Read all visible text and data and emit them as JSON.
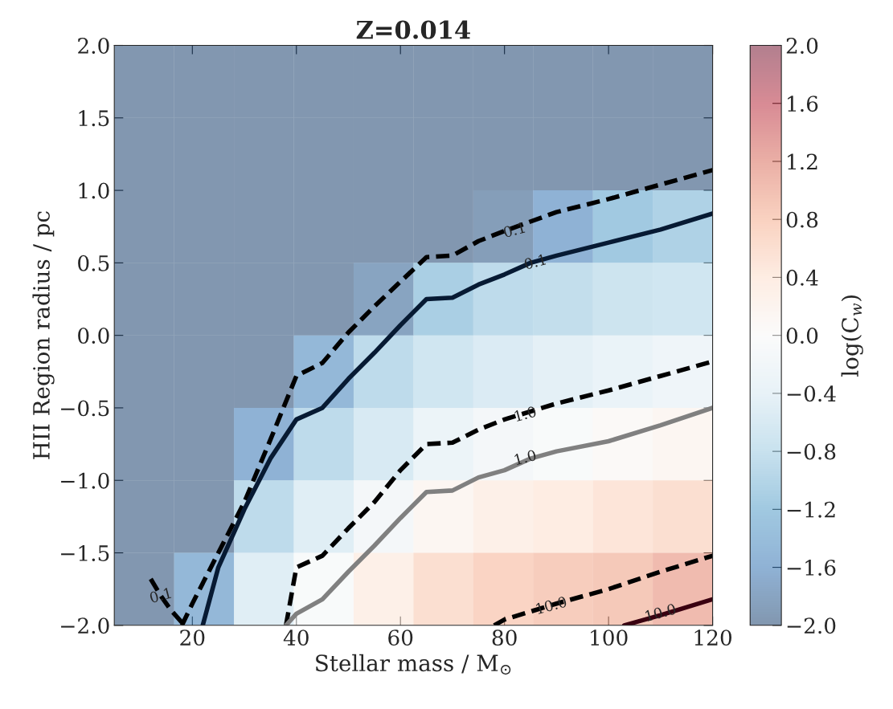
{
  "chart_data": {
    "type": "heatmap",
    "title": "Z=0.014",
    "xlabel": "Stellar mass / M$_{⊙}$",
    "ylabel": "HII Region radius / pc",
    "clabel": "log(C$_{w}$)",
    "x": [
      10.75,
      22.25,
      33.75,
      45.25,
      56.75,
      68.25,
      79.75,
      91.25,
      102.75,
      114.25
    ],
    "y": [
      1.75,
      1.25,
      0.75,
      0.25,
      -0.25,
      -0.75,
      -1.25,
      -1.75
    ],
    "cells": [
      [
        -2,
        -2,
        -2,
        -2,
        -2,
        -2,
        -2,
        -2,
        -2,
        -2
      ],
      [
        -2,
        -2,
        -2,
        -2,
        -2,
        -2,
        -2,
        -2,
        -2,
        -2
      ],
      [
        -2,
        -2,
        -2,
        -2,
        -2,
        -2,
        -1.9,
        -1.6,
        -1.2,
        -1.05
      ],
      [
        -2,
        -2,
        -2,
        -2,
        -1.8,
        -1.1,
        -0.9,
        -0.85,
        -0.75,
        -0.7
      ],
      [
        -2,
        -2,
        -2,
        -1.5,
        -0.9,
        -0.7,
        -0.55,
        -0.45,
        -0.35,
        -0.25
      ],
      [
        -2,
        -2,
        -1.6,
        -0.9,
        -0.6,
        -0.3,
        -0.15,
        -0.05,
        0.05,
        0.15
      ],
      [
        -2,
        -2,
        -0.9,
        -0.5,
        -0.15,
        0.15,
        0.3,
        0.4,
        0.5,
        0.6
      ],
      [
        -2,
        -1.5,
        -0.5,
        -0.05,
        0.3,
        0.6,
        0.75,
        0.85,
        0.9,
        1.05
      ]
    ],
    "xlim": [
      5,
      120
    ],
    "ylim": [
      -2,
      2
    ],
    "xticks": [
      20,
      40,
      60,
      80,
      100,
      120
    ],
    "yticks": [
      {
        "value": -2,
        "label": "−2.0"
      },
      {
        "value": -1.5,
        "label": "−1.5"
      },
      {
        "value": -1,
        "label": "−1.0"
      },
      {
        "value": -0.5,
        "label": "−0.5"
      },
      {
        "value": 0,
        "label": "0.0"
      },
      {
        "value": 0.5,
        "label": "0.5"
      },
      {
        "value": 1,
        "label": "1.0"
      },
      {
        "value": 1.5,
        "label": "1.5"
      },
      {
        "value": 2,
        "label": "2.0"
      }
    ],
    "clim": [
      -2,
      2
    ],
    "cticks": [
      {
        "value": -2,
        "label": "−2.0"
      },
      {
        "value": -1.6,
        "label": "−1.6"
      },
      {
        "value": -1.2,
        "label": "−1.2"
      },
      {
        "value": -0.8,
        "label": "−0.8"
      },
      {
        "value": -0.4,
        "label": "−0.4"
      },
      {
        "value": 0,
        "label": "0.0"
      },
      {
        "value": 0.4,
        "label": "0.4"
      },
      {
        "value": 0.8,
        "label": "0.8"
      },
      {
        "value": 1.2,
        "label": "1.2"
      },
      {
        "value": 1.6,
        "label": "1.6"
      },
      {
        "value": 2,
        "label": "2.0"
      }
    ],
    "series": [
      {
        "type": "line",
        "color": "#000000",
        "line_style": "dashed",
        "x": [
          18,
          20,
          25,
          30,
          35,
          40,
          45,
          50,
          55,
          60,
          65,
          70,
          75,
          80,
          90,
          100,
          110,
          120
        ],
        "values": [
          -2,
          -1.85,
          -1.5,
          -1.15,
          -0.72,
          -0.28,
          -0.19,
          0.02,
          0.2,
          0.37,
          0.54,
          0.55,
          0.65,
          0.72,
          0.85,
          0.94,
          1.04,
          1.14
        ]
      },
      {
        "type": "line",
        "color": "#071a33",
        "line_style": "solid",
        "x": [
          22,
          25,
          30,
          35,
          40,
          45,
          50,
          55,
          60,
          65,
          70,
          75,
          80,
          85,
          90,
          100,
          110,
          120
        ],
        "values": [
          -2,
          -1.6,
          -1.2,
          -0.85,
          -0.58,
          -0.5,
          -0.3,
          -0.12,
          0.07,
          0.25,
          0.26,
          0.35,
          0.42,
          0.5,
          0.55,
          0.64,
          0.73,
          0.84
        ]
      },
      {
        "type": "line",
        "color": "#000000",
        "line_style": "dashed",
        "x": [
          38,
          40,
          45,
          50,
          55,
          60,
          65,
          70,
          75,
          80,
          90,
          100,
          110,
          120
        ],
        "values": [
          -2,
          -1.6,
          -1.52,
          -1.33,
          -1.15,
          -0.93,
          -0.75,
          -0.74,
          -0.65,
          -0.58,
          -0.47,
          -0.38,
          -0.28,
          -0.18
        ]
      },
      {
        "type": "line",
        "color": "#808080",
        "line_style": "solid",
        "x": [
          38,
          40,
          45,
          50,
          55,
          60,
          65,
          70,
          75,
          80,
          85,
          90,
          100,
          110,
          120
        ],
        "values": [
          -2,
          -1.92,
          -1.82,
          -1.63,
          -1.45,
          -1.26,
          -1.08,
          -1.07,
          -0.98,
          -0.93,
          -0.85,
          -0.8,
          -0.73,
          -0.62,
          -0.5
        ]
      },
      {
        "type": "line",
        "color": "#000000",
        "line_style": "dashed",
        "x": [
          78,
          80,
          90,
          100,
          110,
          120
        ],
        "values": [
          -2,
          -1.96,
          -1.85,
          -1.75,
          -1.63,
          -1.52
        ]
      },
      {
        "type": "line",
        "color": "#3a0010",
        "line_style": "solid",
        "x": [
          103,
          110,
          120
        ],
        "values": [
          -2,
          -1.93,
          -1.82
        ]
      },
      {
        "type": "line",
        "color": "#000000",
        "line_style": "dashed",
        "x": [
          12,
          14,
          16,
          18.5
        ],
        "values": [
          -1.68,
          -1.8,
          -1.9,
          -2
        ]
      }
    ],
    "annotations": [
      {
        "text": "0.1",
        "x": 14,
        "y": -1.8
      },
      {
        "text": "0.1",
        "x": 82,
        "y": 0.72
      },
      {
        "text": "0.1",
        "x": 86,
        "y": 0.5
      },
      {
        "text": "1.0",
        "x": 84,
        "y": -0.55
      },
      {
        "text": "1.0",
        "x": 84,
        "y": -0.85
      },
      {
        "text": "10.0",
        "x": 89,
        "y": -1.87
      },
      {
        "text": "10.0",
        "x": 110,
        "y": -1.92
      }
    ],
    "grid": false
  }
}
